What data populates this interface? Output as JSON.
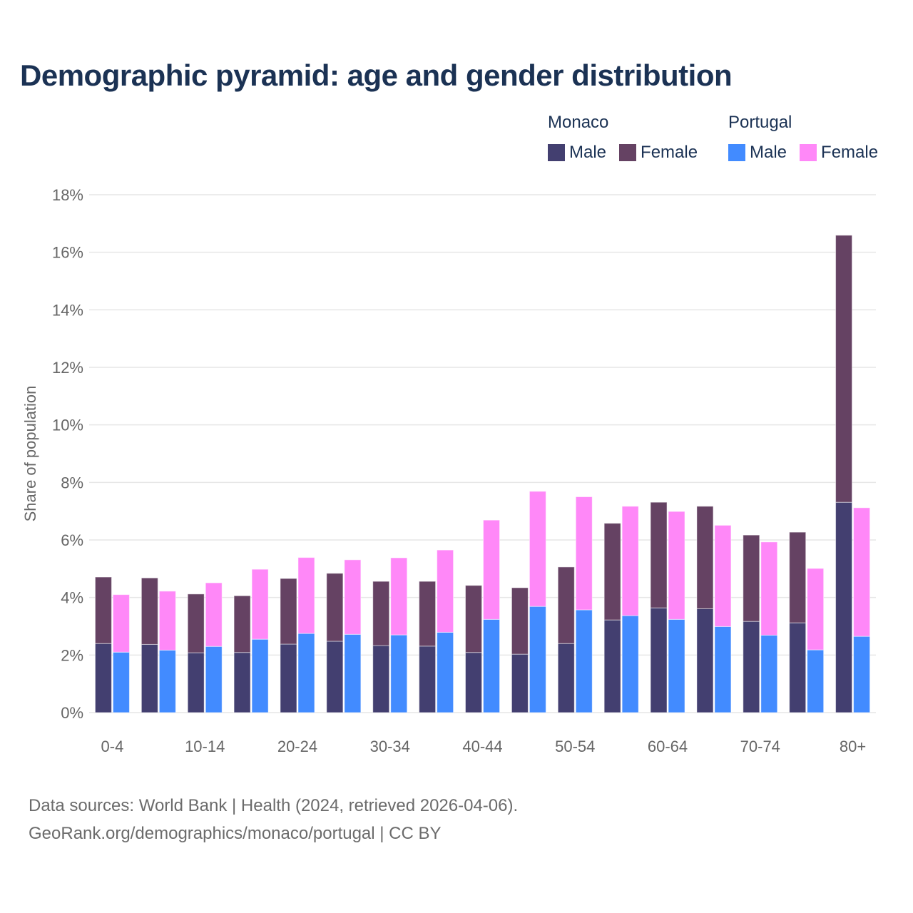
{
  "title": "Demographic pyramid: age and gender distribution",
  "legend": {
    "groups": [
      {
        "name": "Monaco",
        "items": [
          {
            "label": "Male",
            "color": "#433f70"
          },
          {
            "label": "Female",
            "color": "#654263"
          }
        ]
      },
      {
        "name": "Portugal",
        "items": [
          {
            "label": "Male",
            "color": "#428bff"
          },
          {
            "label": "Female",
            "color": "#ff88f8"
          }
        ]
      }
    ]
  },
  "footer": {
    "line1": "Data sources: World Bank | Health (2024, retrieved 2026-04-06).",
    "line2": "GeoRank.org/demographics/monaco/portugal | CC BY"
  },
  "chart_data": {
    "type": "bar",
    "stacked": true,
    "title": "Demographic pyramid: age and gender distribution",
    "xlabel": "",
    "ylabel": "Share of population",
    "ylim": [
      0,
      18
    ],
    "yticks": [
      0,
      2,
      4,
      6,
      8,
      10,
      12,
      14,
      16,
      18
    ],
    "ytick_labels": [
      "0%",
      "2%",
      "4%",
      "6%",
      "8%",
      "10%",
      "12%",
      "14%",
      "16%",
      "18%"
    ],
    "grid": true,
    "legend_position": "top-right",
    "categories": [
      "0-4",
      "5-9",
      "10-14",
      "15-19",
      "20-24",
      "25-29",
      "30-34",
      "35-39",
      "40-44",
      "45-49",
      "50-54",
      "55-59",
      "60-64",
      "65-69",
      "70-74",
      "75-79",
      "80+"
    ],
    "shown_xtick_labels": [
      "0-4",
      "10-14",
      "20-24",
      "30-34",
      "40-44",
      "50-54",
      "60-64",
      "70-74",
      "80+"
    ],
    "series": [
      {
        "name": "Monaco Male",
        "country": "Monaco",
        "stack": "Monaco",
        "color": "#433f70",
        "values": [
          2.4,
          2.37,
          2.08,
          2.09,
          2.38,
          2.48,
          2.33,
          2.31,
          2.09,
          2.03,
          2.4,
          3.22,
          3.64,
          3.61,
          3.17,
          3.12,
          7.31
        ]
      },
      {
        "name": "Monaco Female",
        "country": "Monaco",
        "stack": "Monaco",
        "color": "#654263",
        "values": [
          2.31,
          2.31,
          2.04,
          1.97,
          2.28,
          2.36,
          2.23,
          2.25,
          2.33,
          2.31,
          2.66,
          3.36,
          3.67,
          3.56,
          3.0,
          3.15,
          9.28
        ]
      },
      {
        "name": "Portugal Male",
        "country": "Portugal",
        "stack": "Portugal",
        "color": "#428bff",
        "values": [
          2.1,
          2.17,
          2.3,
          2.55,
          2.75,
          2.72,
          2.7,
          2.79,
          3.24,
          3.69,
          3.57,
          3.37,
          3.24,
          2.99,
          2.69,
          2.18,
          2.65
        ]
      },
      {
        "name": "Portugal Female",
        "country": "Portugal",
        "stack": "Portugal",
        "color": "#ff88f8",
        "values": [
          2.0,
          2.05,
          2.21,
          2.43,
          2.64,
          2.59,
          2.68,
          2.86,
          3.45,
          4.0,
          3.93,
          3.8,
          3.75,
          3.52,
          3.24,
          2.83,
          4.47
        ]
      }
    ]
  }
}
